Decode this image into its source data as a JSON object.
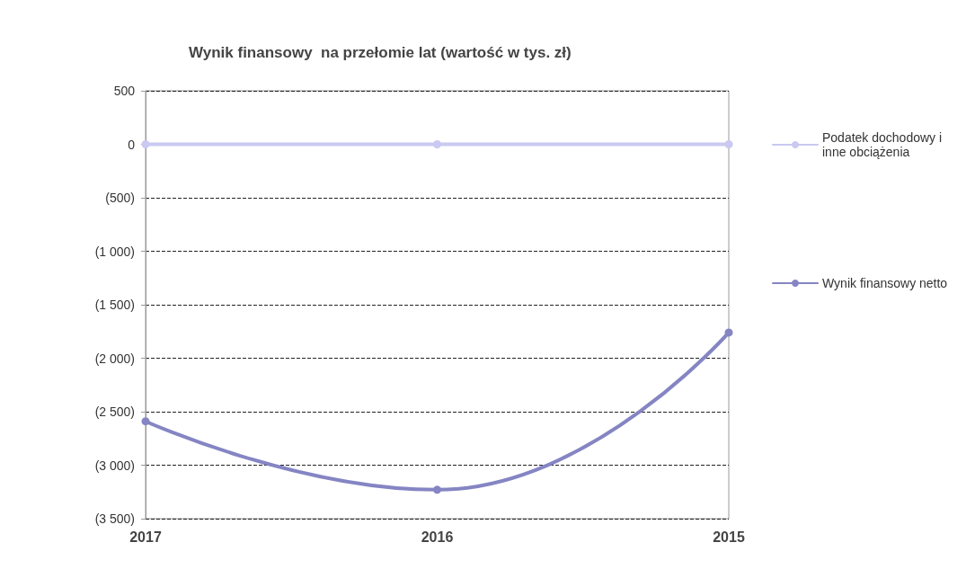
{
  "chart_data": {
    "type": "line",
    "title": "Wynik finansowy  na przełomie lat (wartość w tys. zł)",
    "categories": [
      "2017",
      "2016",
      "2015"
    ],
    "series": [
      {
        "name": "Podatek dochodowy i inne obciążenia",
        "color": "#c9c9f2",
        "values": [
          0,
          0,
          0
        ]
      },
      {
        "name": "Wynik finansowy netto",
        "color": "#8585c4",
        "values": [
          -2590,
          -3230,
          -1760
        ]
      }
    ],
    "ylim": [
      -3500,
      500
    ],
    "yticks": [
      {
        "value": -3500,
        "label": "(3 500)"
      },
      {
        "value": -3000,
        "label": "(3 000)"
      },
      {
        "value": -2500,
        "label": "(2 500)"
      },
      {
        "value": -2000,
        "label": "(2 000)"
      },
      {
        "value": -1500,
        "label": "(1 500)"
      },
      {
        "value": -1000,
        "label": "(1 000)"
      },
      {
        "value": -500,
        "label": "(500)"
      },
      0,
      500
    ],
    "grid": "y",
    "legend": "right",
    "marker": "circle",
    "line_style": "solid"
  }
}
